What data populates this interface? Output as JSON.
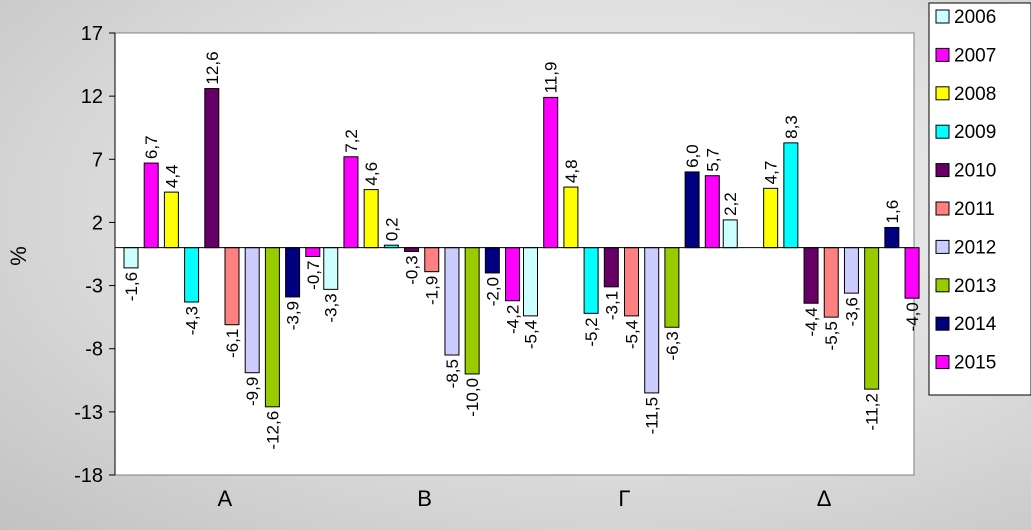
{
  "chart_data": {
    "type": "bar",
    "ylabel": "%",
    "xlabel": "",
    "ylim": [
      -18,
      17
    ],
    "yticks": [
      "17",
      "12",
      "7",
      "2",
      "-3",
      "-8",
      "-13",
      "-18"
    ],
    "categories": [
      "Α",
      "Β",
      "Γ",
      "Δ"
    ],
    "legend_position": "right",
    "grid": false,
    "series": [
      {
        "name": "2006",
        "color": "#ccffff",
        "values": [
          -1.6,
          -3.3,
          -5.4,
          2.2
        ],
        "labels": [
          "-1,6",
          "-3,3",
          "-5,4",
          "2,2"
        ]
      },
      {
        "name": "2007",
        "color": "#ff00ff",
        "values": [
          6.7,
          7.2,
          11.9,
          null
        ],
        "labels": [
          "6,7",
          "7,2",
          "11,9",
          ""
        ]
      },
      {
        "name": "2008",
        "color": "#ffff00",
        "values": [
          4.4,
          4.6,
          4.8,
          4.7
        ],
        "labels": [
          "4,4",
          "4,6",
          "4,8",
          "4,7"
        ]
      },
      {
        "name": "2009",
        "color": "#00ffff",
        "values": [
          -4.3,
          0.2,
          -5.2,
          8.3
        ],
        "labels": [
          "-4,3",
          "0,2",
          "-5,2",
          "8,3"
        ]
      },
      {
        "name": "2010",
        "color": "#660066",
        "values": [
          12.6,
          -0.3,
          -3.1,
          -4.4
        ],
        "labels": [
          "12,6",
          "-0,3",
          "-3,1",
          "-4,4"
        ]
      },
      {
        "name": "2011",
        "color": "#ff8080",
        "values": [
          -6.1,
          -1.9,
          -5.4,
          -5.5
        ],
        "labels": [
          "-6,1",
          "-1,9",
          "-5,4",
          "-5,5"
        ]
      },
      {
        "name": "2012",
        "color": "#ccccff",
        "values": [
          -9.9,
          -8.5,
          -11.5,
          -3.6
        ],
        "labels": [
          "-9,9",
          "-8,5",
          "-11,5",
          "-3,6"
        ]
      },
      {
        "name": "2013",
        "color": "#99cc00",
        "values": [
          -12.6,
          -10.0,
          -6.3,
          -11.2
        ],
        "labels": [
          "-12,6",
          "-10,0",
          "-6,3",
          "-11,2"
        ]
      },
      {
        "name": "2014",
        "color": "#000080",
        "values": [
          -3.9,
          -2.0,
          6.0,
          1.6
        ],
        "labels": [
          "-3,9",
          "-2,0",
          "6,0",
          "1,6"
        ]
      },
      {
        "name": "2015",
        "color": "#ff00ff",
        "values": [
          -0.7,
          -4.2,
          5.7,
          -4.0
        ],
        "labels": [
          "-0,7",
          "-4,2",
          "5,7",
          "-4,0"
        ]
      }
    ]
  }
}
